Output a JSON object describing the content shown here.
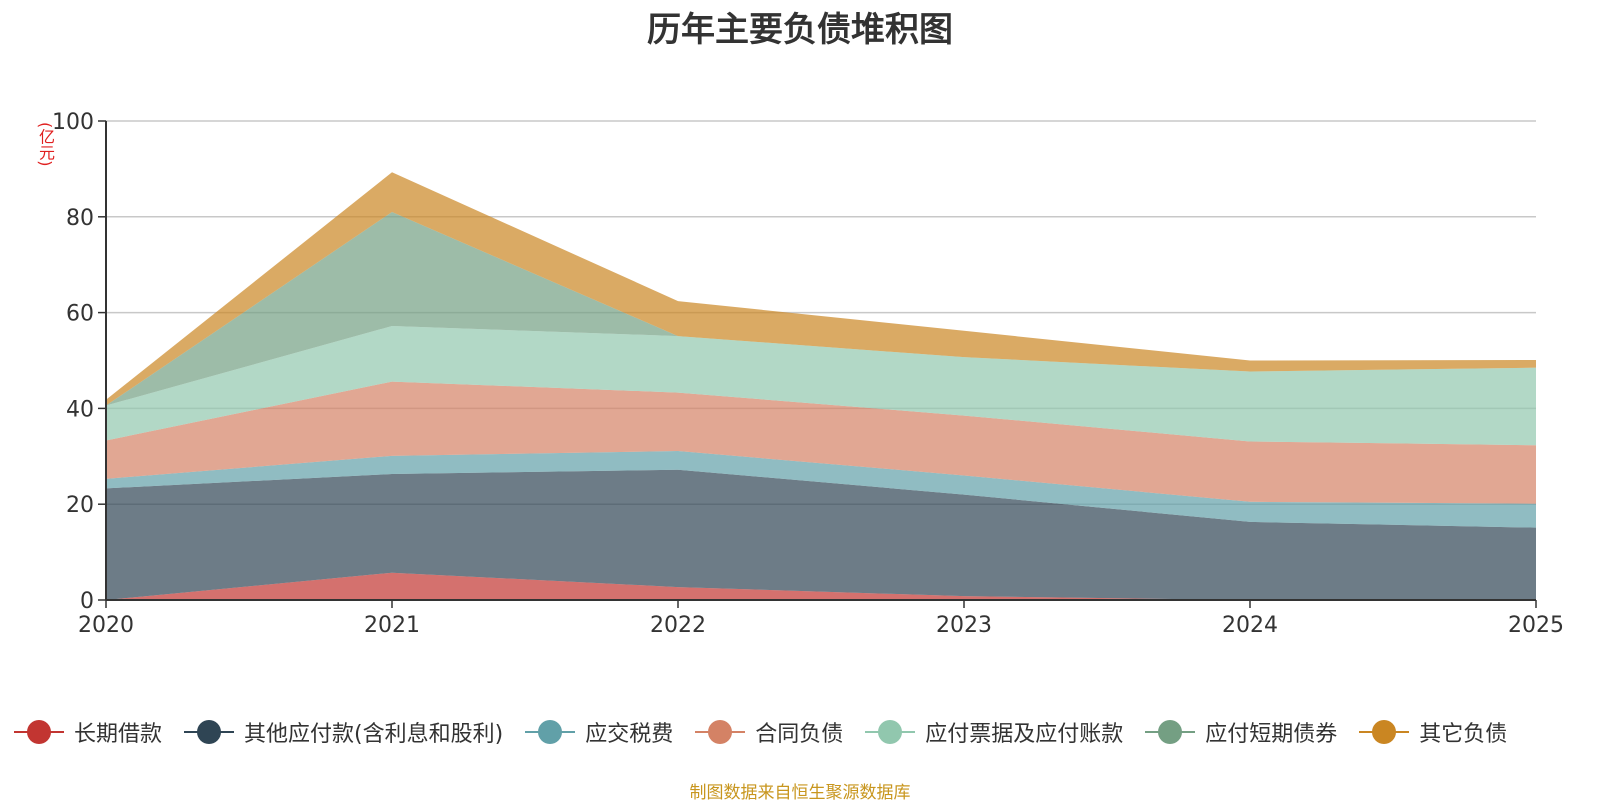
{
  "chart_data": {
    "type": "area",
    "stacked": true,
    "title": "历年主要负债堆积图",
    "unit_label": "(亿元)",
    "x": [
      "2020",
      "2021",
      "2022",
      "2023",
      "2024",
      "2025"
    ],
    "ylim": [
      0,
      100
    ],
    "yticks": [
      0,
      20,
      40,
      60,
      80,
      100
    ],
    "grid": true,
    "legend_position": "bottom",
    "series": [
      {
        "name": "长期借款",
        "color": "#c23531",
        "values": [
          0,
          5.7,
          2.7,
          0.8,
          0,
          0
        ]
      },
      {
        "name": "其他应付款(含利息和股利)",
        "color": "#2f4554",
        "values": [
          23.3,
          20.6,
          24.5,
          21.2,
          16.3,
          15.1
        ]
      },
      {
        "name": "应交税费",
        "color": "#61a0a8",
        "values": [
          2.0,
          3.8,
          3.9,
          4.0,
          4.2,
          5.0
        ]
      },
      {
        "name": "合同负债",
        "color": "#d48265",
        "values": [
          8.0,
          15.5,
          12.2,
          12.5,
          12.6,
          12.2
        ]
      },
      {
        "name": "应付票据及应付账款",
        "color": "#91c7ae",
        "values": [
          7.3,
          11.6,
          11.8,
          12.2,
          14.6,
          16.2
        ]
      },
      {
        "name": "应付短期债券",
        "color": "#749f83",
        "values": [
          0,
          23.8,
          0,
          0,
          0,
          0
        ]
      },
      {
        "name": "其它负债",
        "color": "#ca8622",
        "values": [
          1.2,
          8.3,
          7.3,
          5.5,
          2.3,
          1.6
        ]
      }
    ]
  },
  "source_note": "制图数据来自恒生聚源数据库"
}
